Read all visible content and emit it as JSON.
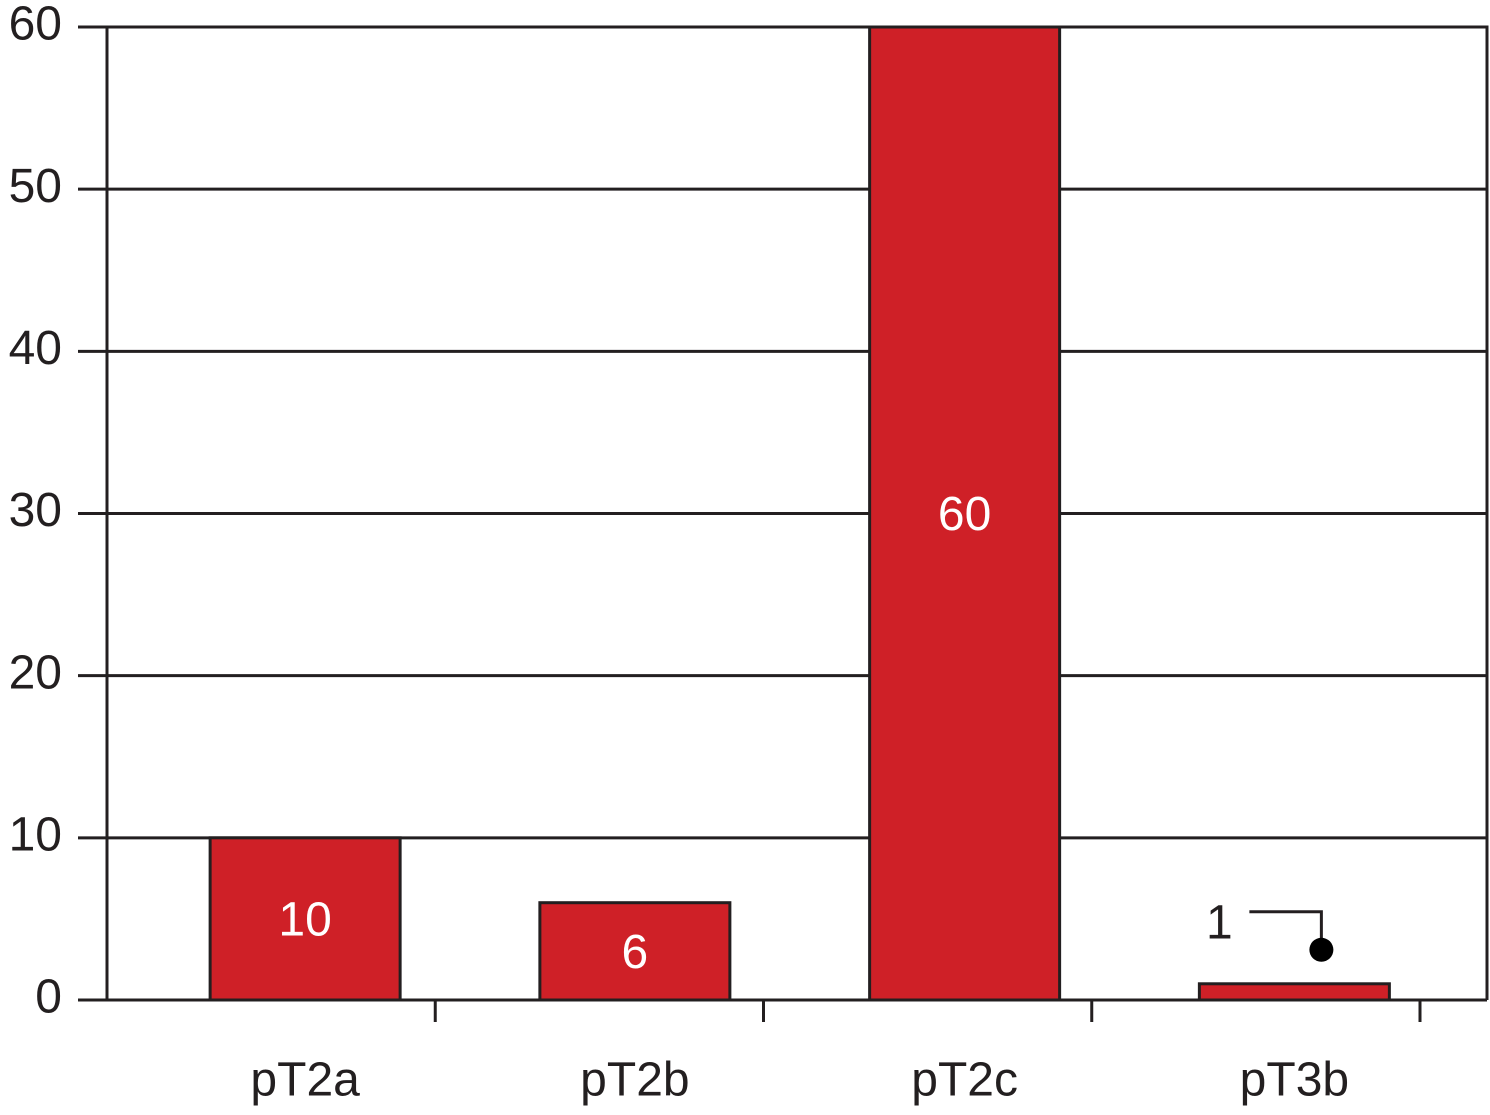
{
  "chart_data": {
    "type": "bar",
    "categories": [
      "pT2a",
      "pT2b",
      "pT2c",
      "pT3b"
    ],
    "values": [
      10,
      6,
      60,
      1
    ],
    "color": "#cf2027",
    "ylim": [
      0,
      60
    ],
    "yticks": [
      0,
      10,
      20,
      30,
      40,
      50,
      60
    ],
    "grid": true
  }
}
